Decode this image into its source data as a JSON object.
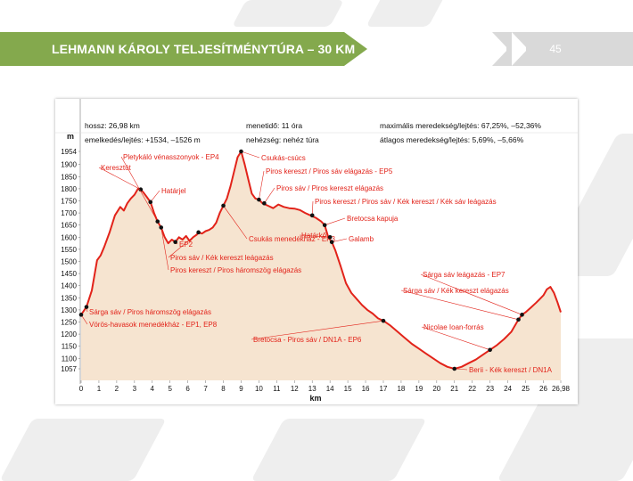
{
  "header": {
    "title": "LEHMANN KÁROLY TELJESÍTMÉNYTÚRA – 30 KM",
    "page_number": "45"
  },
  "info": {
    "distance": "hossz: 26,98 km",
    "ascent_descent": "emelkedés/lejtés: +1534, –1526 m",
    "walking_time": "menetidő: 11 óra",
    "difficulty": "nehézség: nehéz túra",
    "max_gradient": "maximális meredekség/lejtés: 67,25%, –52,36%",
    "avg_gradient": "átlagos meredekség/lejtés: 5,69%, –5,66%"
  },
  "colors": {
    "header_green": "#84a94d",
    "profile_line": "#e2231a",
    "profile_fill": "#f6e4d0",
    "label_text": "#e2231a"
  },
  "chart_data": {
    "type": "area",
    "xlabel": "km",
    "ylabel": "m",
    "xlim": [
      0,
      26.98
    ],
    "x_ticks": [
      "0",
      "1",
      "2",
      "3",
      "4",
      "5",
      "6",
      "7",
      "8",
      "9",
      "10",
      "11",
      "12",
      "13",
      "14",
      "15",
      "16",
      "17",
      "18",
      "19",
      "20",
      "21",
      "22",
      "23",
      "24",
      "25",
      "26",
      "26,98"
    ],
    "x_tick_values": [
      0,
      1,
      2,
      3,
      4,
      5,
      6,
      7,
      8,
      9,
      10,
      11,
      12,
      13,
      14,
      15,
      16,
      17,
      18,
      19,
      20,
      21,
      22,
      23,
      24,
      25,
      26,
      26.98
    ],
    "y_ticks": [
      "1954",
      "1900",
      "1850",
      "1800",
      "1750",
      "1700",
      "1650",
      "1600",
      "1550",
      "1500",
      "1450",
      "1400",
      "1350",
      "1300",
      "1250",
      "1200",
      "1150",
      "1100",
      "1057"
    ],
    "y_tick_values": [
      1954,
      1900,
      1850,
      1800,
      1750,
      1700,
      1650,
      1600,
      1550,
      1500,
      1450,
      1400,
      1350,
      1300,
      1250,
      1200,
      1150,
      1100,
      1057
    ],
    "grid": false,
    "series": [
      {
        "x": [
          0,
          0.3,
          0.6,
          0.9,
          1.1,
          1.3,
          1.6,
          1.9,
          2.2,
          2.4,
          2.6,
          2.8,
          3.0,
          3.2,
          3.35,
          3.5,
          3.7,
          3.9,
          4.1,
          4.3,
          4.5,
          4.7,
          4.9,
          5.1,
          5.3,
          5.5,
          5.7,
          5.9,
          6.1,
          6.3,
          6.5,
          6.6,
          6.8,
          7.0,
          7.2,
          7.4,
          7.6,
          7.8,
          8.0,
          8.2,
          8.4,
          8.6,
          8.8,
          9.0,
          9.2,
          9.4,
          9.6,
          9.8,
          10.0,
          10.2,
          10.5,
          10.8,
          11.1,
          11.4,
          11.7,
          12.0,
          12.3,
          12.6,
          12.9,
          13.2,
          13.5,
          13.7,
          13.9,
          14.1,
          14.3,
          14.6,
          14.9,
          15.2,
          15.5,
          15.8,
          16.1,
          16.4,
          16.7,
          17.0,
          17.4,
          17.8,
          18.2,
          18.6,
          19.0,
          19.4,
          19.8,
          20.2,
          20.6,
          21.0,
          21.4,
          21.8,
          22.2,
          22.6,
          23.0,
          23.4,
          23.8,
          24.2,
          24.6,
          24.8,
          25.0,
          25.3,
          25.6,
          25.8,
          26.0,
          26.2,
          26.4,
          26.6,
          26.8,
          26.98
        ],
        "y": [
          1280,
          1312,
          1380,
          1505,
          1525,
          1560,
          1620,
          1690,
          1725,
          1710,
          1740,
          1760,
          1775,
          1800,
          1797,
          1785,
          1765,
          1745,
          1700,
          1665,
          1640,
          1600,
          1575,
          1590,
          1580,
          1600,
          1590,
          1605,
          1585,
          1600,
          1610,
          1620,
          1615,
          1625,
          1630,
          1640,
          1660,
          1700,
          1730,
          1760,
          1810,
          1870,
          1930,
          1954,
          1900,
          1840,
          1780,
          1760,
          1755,
          1740,
          1730,
          1720,
          1735,
          1725,
          1720,
          1718,
          1712,
          1700,
          1690,
          1680,
          1665,
          1650,
          1600,
          1580,
          1545,
          1480,
          1410,
          1370,
          1345,
          1320,
          1300,
          1285,
          1265,
          1255,
          1235,
          1210,
          1185,
          1160,
          1140,
          1120,
          1100,
          1080,
          1065,
          1057,
          1065,
          1080,
          1095,
          1115,
          1135,
          1155,
          1180,
          1210,
          1260,
          1280,
          1290,
          1310,
          1330,
          1345,
          1360,
          1385,
          1395,
          1370,
          1330,
          1290
        ]
      }
    ],
    "waypoints": [
      {
        "label": "Vörös-havasok menedékház - EP1, EP8",
        "x": 0,
        "y": 1280
      },
      {
        "label": "Sárga sáv / Piros háromszög elágazás",
        "x": 0.3,
        "y": 1312
      },
      {
        "label": "Keresztút",
        "x": 3.35,
        "y": 1797
      },
      {
        "label": "Határjel",
        "x": 3.9,
        "y": 1745
      },
      {
        "label": "Pletykáló vénasszonyok - EP4",
        "x": 4.3,
        "y": 1665
      },
      {
        "label": "Piros kereszt / Piros háromszög elágazás",
        "x": 4.5,
        "y": 1640
      },
      {
        "label": "EP2",
        "x": 5.3,
        "y": 1580
      },
      {
        "label": "Piros sáv / Kék kereszt leágazás",
        "x": 6.6,
        "y": 1620
      },
      {
        "label": "Csukás menedékház - EP3",
        "x": 8.0,
        "y": 1730
      },
      {
        "label": "Csukás-csúcs",
        "x": 9.0,
        "y": 1954
      },
      {
        "label": "Piros kereszt / Piros sáv elágazás - EP5",
        "x": 10.0,
        "y": 1755
      },
      {
        "label": "Piros sáv / Piros kereszt elágazás",
        "x": 10.3,
        "y": 1740
      },
      {
        "label": "Piros kereszt / Piros sáv / Kék kereszt / Kék sáv leágazás",
        "x": 13.0,
        "y": 1690
      },
      {
        "label": "Bretocsa kapuja",
        "x": 13.7,
        "y": 1650
      },
      {
        "label": "Határkő",
        "x": 14.0,
        "y": 1600
      },
      {
        "label": "Galamb",
        "x": 14.1,
        "y": 1580
      },
      {
        "label": "Bretocsa - Piros sáv / DN1A - EP6",
        "x": 17.0,
        "y": 1255
      },
      {
        "label": "Berii - Kék kereszt / DN1A",
        "x": 21.0,
        "y": 1057
      },
      {
        "label": "Nicolae Ioan-forrás",
        "x": 23.0,
        "y": 1135
      },
      {
        "label": "Sárga sáv / Kék kereszt elágazás",
        "x": 24.6,
        "y": 1260
      },
      {
        "label": "Sárga sáv leágazás - EP7",
        "x": 24.8,
        "y": 1280
      }
    ]
  }
}
